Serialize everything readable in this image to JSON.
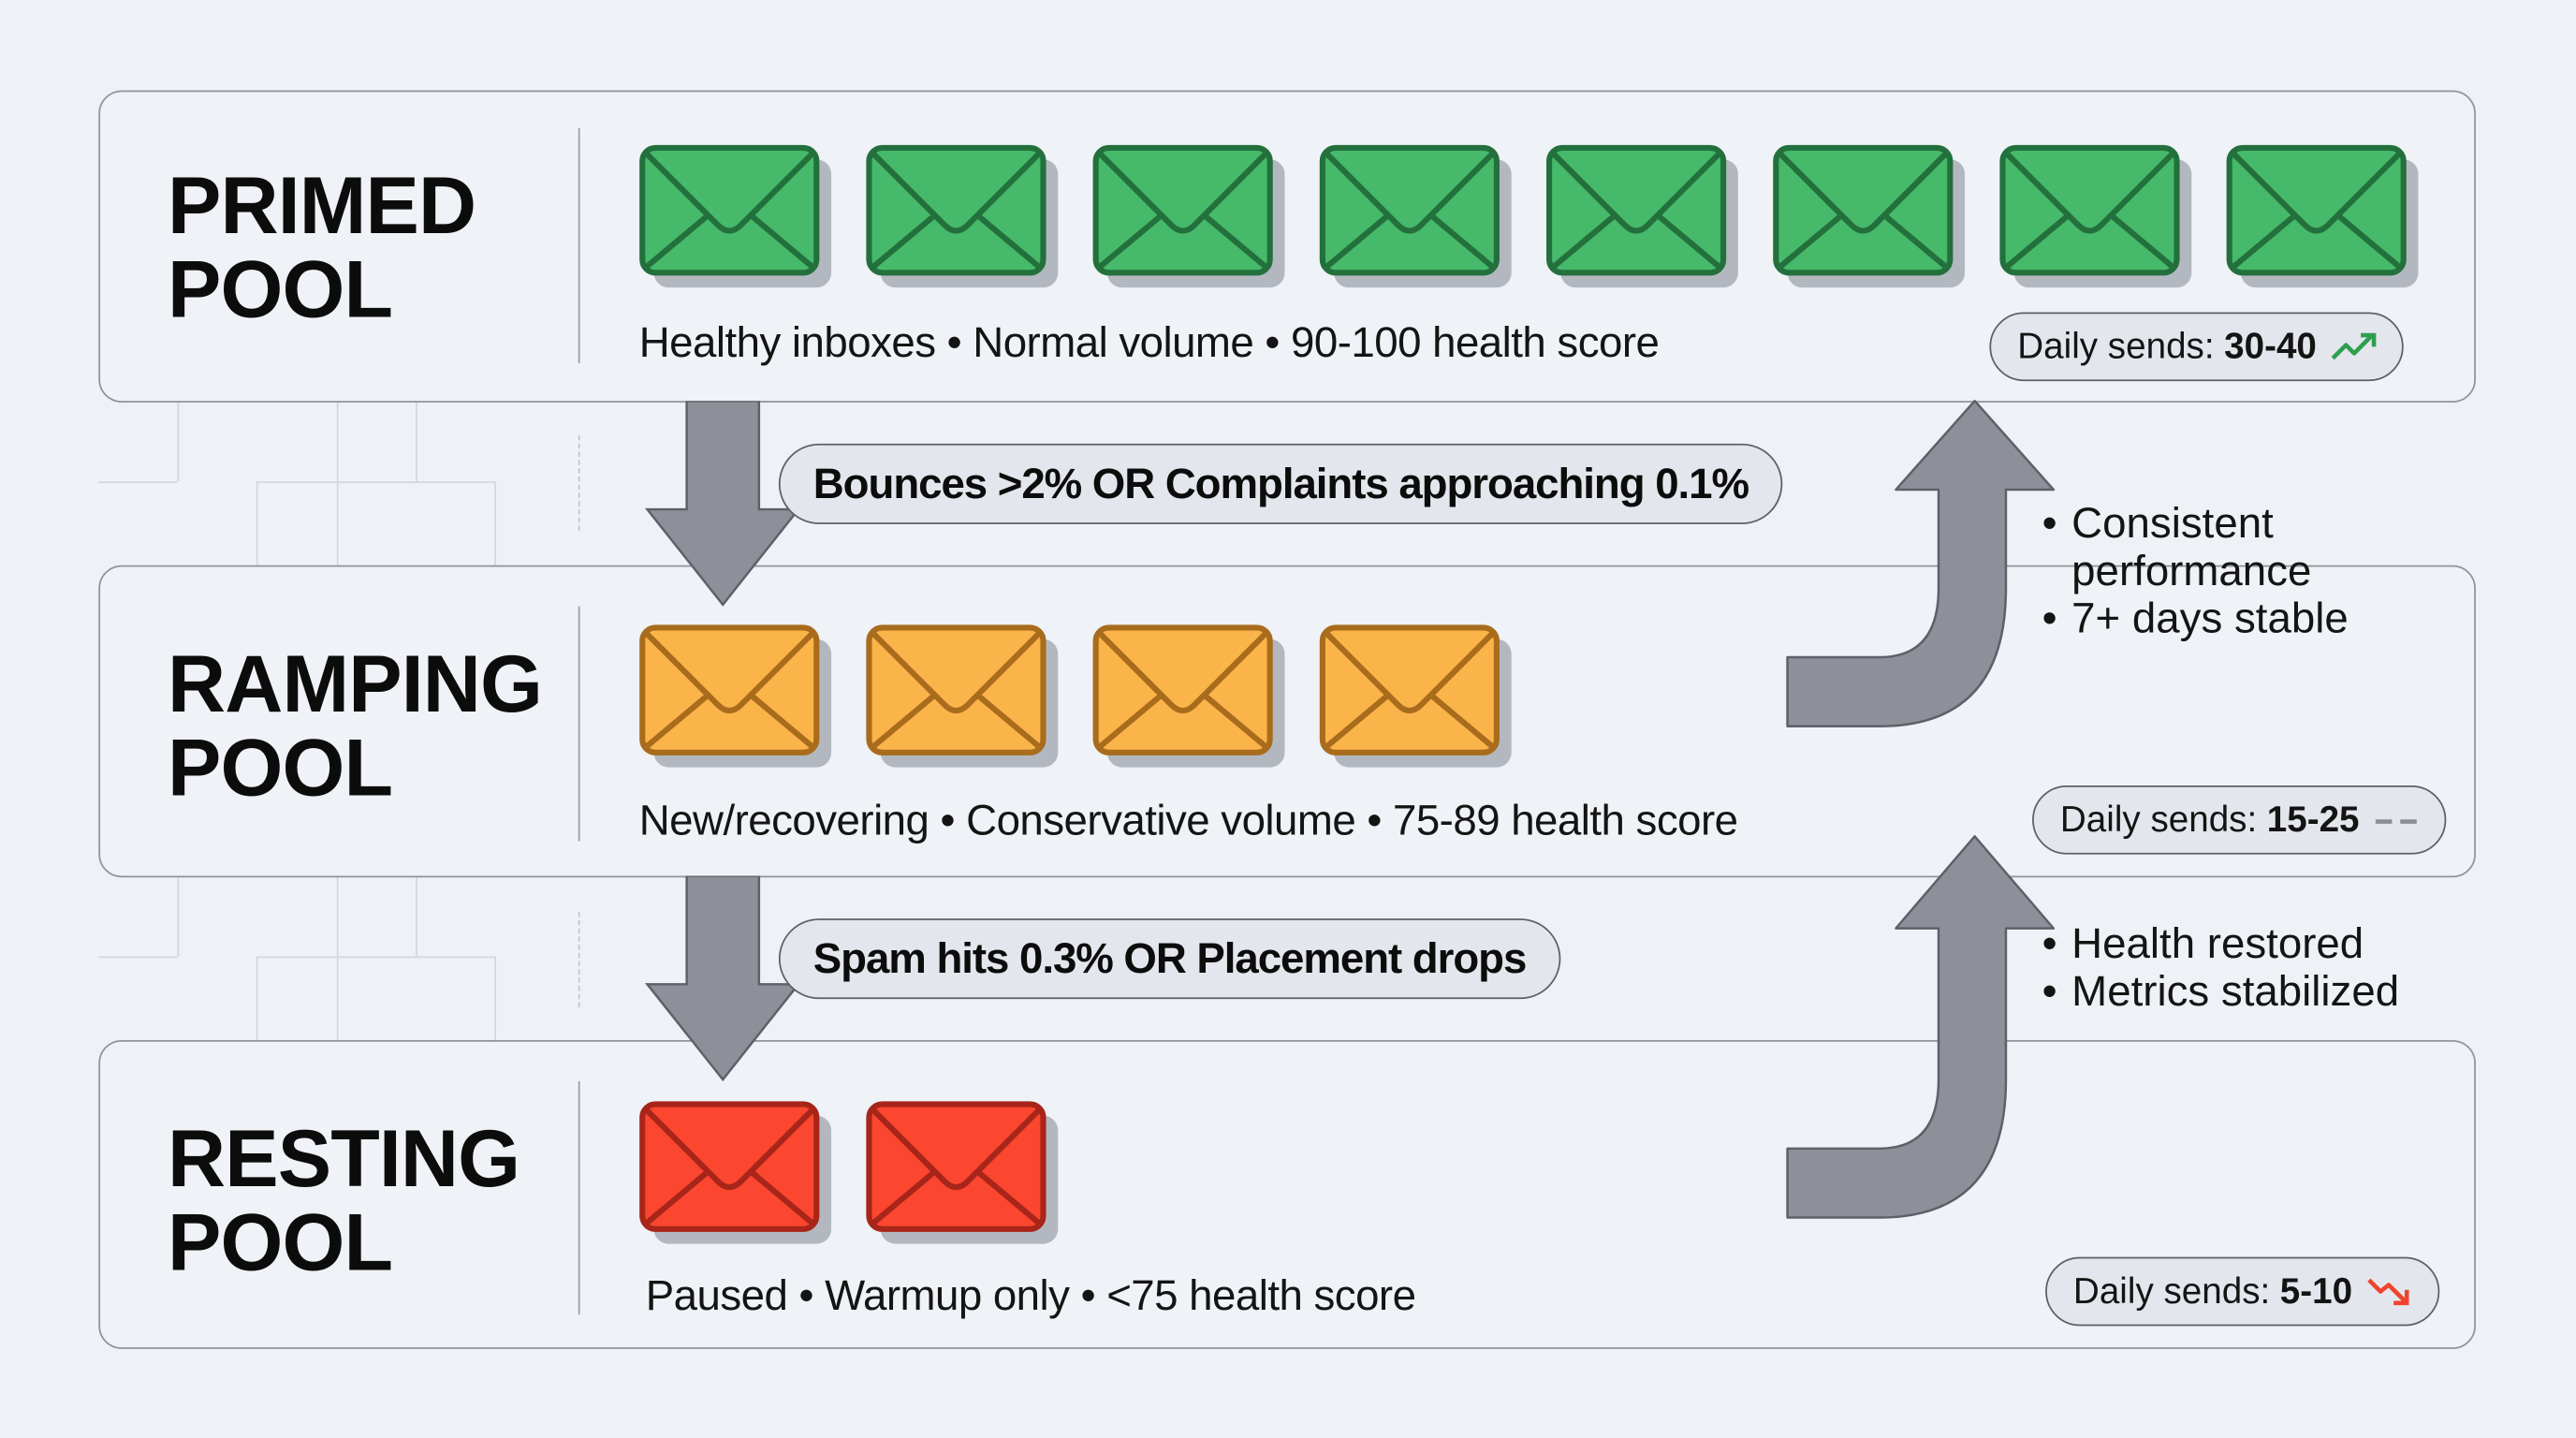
{
  "pools": [
    {
      "id": "primed",
      "title": "PRIMED\nPOOL",
      "envelope_count": 8,
      "envelope_fill": "#46b96a",
      "envelope_stroke": "#23703d",
      "description": "Healthy inboxes • Normal volume • 90-100 health score",
      "badge": {
        "label": "Daily sends:",
        "value": "30-40",
        "trend_icon": "trend-up-icon",
        "trend_color": "#2f9e4f"
      }
    },
    {
      "id": "ramping",
      "title": "RAMPING\nPOOL",
      "envelope_count": 4,
      "envelope_fill": "#fbb44a",
      "envelope_stroke": "#a86c1c",
      "description": "New/recovering • Conservative volume • 75-89 health score",
      "badge": {
        "label": "Daily sends:",
        "value": "15-25",
        "trend_icon": "trend-flat-icon",
        "trend_color": "#8a8f97"
      }
    },
    {
      "id": "resting",
      "title": "RESTING\nPOOL",
      "envelope_count": 2,
      "envelope_fill": "#fb4630",
      "envelope_stroke": "#a8251a",
      "description": "Paused • Warmup only • <75 health score",
      "badge": {
        "label": "Daily sends:",
        "value": "5-10",
        "trend_icon": "trend-down-icon",
        "trend_color": "#f0432d"
      }
    }
  ],
  "transitions": {
    "demote_primed_to_ramping": "Bounces >2% OR Complaints approaching 0.1%",
    "demote_ramping_to_resting": "Spam hits 0.3% OR Placement drops",
    "promote_ramping_to_primed": [
      "Consistent",
      "performance",
      "7+ days stable"
    ],
    "promote_resting_to_ramping": [
      "Health restored",
      "Metrics stabilized"
    ]
  },
  "colors": {
    "background": "#eef1f5",
    "box_border": "#8f949c",
    "arrow_fill": "#8e9099",
    "arrow_stroke": "#5c6068",
    "pill_fill": "#e3e6ec"
  }
}
